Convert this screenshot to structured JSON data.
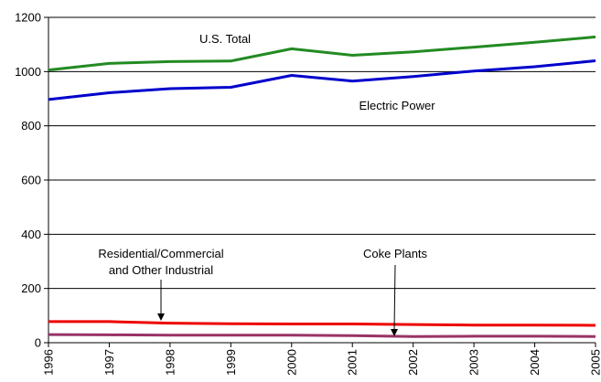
{
  "chart_data": {
    "type": "line",
    "x": [
      "1996",
      "1997",
      "1998",
      "1999",
      "2000",
      "2001",
      "2002",
      "2003",
      "2004",
      "2005"
    ],
    "ylim": [
      0,
      1200
    ],
    "yticks": [
      0,
      200,
      400,
      600,
      800,
      1000,
      1200
    ],
    "grid": "horizontal",
    "series": [
      {
        "key": "total",
        "name": "U.S. Total",
        "color": "#228B22",
        "values": [
          1006,
          1030,
          1037,
          1039,
          1084,
          1060,
          1073,
          1090,
          1108,
          1128
        ]
      },
      {
        "key": "electric",
        "name": "Electric Power",
        "color": "#0000CC",
        "values": [
          897,
          922,
          937,
          942,
          986,
          965,
          982,
          1002,
          1018,
          1040
        ]
      },
      {
        "key": "rescom",
        "name": "Residential/Commercial and Other Industrial",
        "color": "#EE0000",
        "values": [
          78,
          78,
          72,
          70,
          69,
          69,
          67,
          65,
          65,
          64
        ]
      },
      {
        "key": "coke",
        "name": "Coke Plants",
        "color": "#993366",
        "values": [
          30,
          29,
          28,
          28,
          28,
          26,
          23,
          24,
          24,
          23
        ]
      }
    ],
    "annotations": {
      "total": "U.S. Total",
      "electric": "Electric Power",
      "rescom_line1": "Residential/Commercial",
      "rescom_line2": "and Other Industrial",
      "coke": "Coke Plants"
    }
  }
}
